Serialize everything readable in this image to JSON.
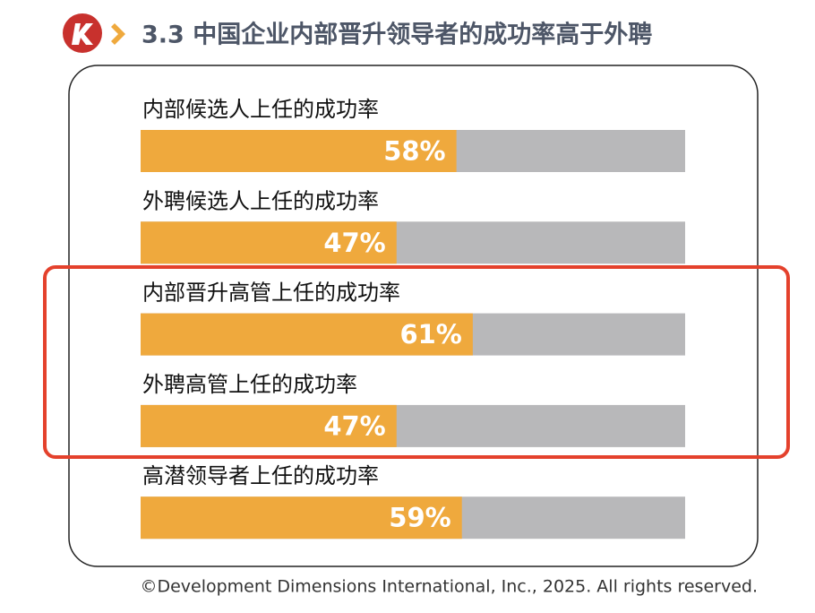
{
  "chart_data": {
    "type": "bar",
    "orientation": "horizontal",
    "title": "3.3 中国企业内部晋升领导者的成功率高于外聘",
    "categories": [
      "内部候选人上任的成功率",
      "外聘候选人上任的成功率",
      "内部晋升高管上任的成功率",
      "外聘高管上任的成功率",
      "高潜领导者上任的成功率"
    ],
    "values": [
      58,
      47,
      61,
      47,
      59
    ],
    "value_labels": [
      "58%",
      "47%",
      "61%",
      "47%",
      "59%"
    ],
    "color": "#efa93d",
    "track_color": "#b8b8ba",
    "xlim": [
      0,
      100
    ],
    "footer": "©Development Dimensions International, Inc., 2025. All rights reserved."
  }
}
